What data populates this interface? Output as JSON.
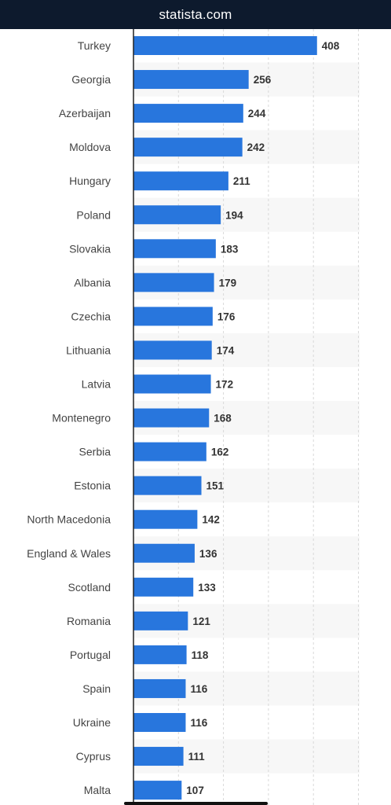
{
  "header": {
    "site": "statista.com"
  },
  "colors": {
    "bar": "#2876dd",
    "band": "#f7f7f7",
    "grid": "#d9d9d9",
    "axis": "#222222",
    "header_bg": "#0d1a2d"
  },
  "chart_data": {
    "type": "bar",
    "orientation": "horizontal",
    "categories": [
      "Turkey",
      "Georgia",
      "Azerbaijan",
      "Moldova",
      "Hungary",
      "Poland",
      "Slovakia",
      "Albania",
      "Czechia",
      "Lithuania",
      "Latvia",
      "Montenegro",
      "Serbia",
      "Estonia",
      "North Macedonia",
      "England & Wales",
      "Scotland",
      "Romania",
      "Portugal",
      "Spain",
      "Ukraine",
      "Cyprus",
      "Malta"
    ],
    "values": [
      408,
      256,
      244,
      242,
      211,
      194,
      183,
      179,
      176,
      174,
      172,
      168,
      162,
      151,
      142,
      136,
      133,
      121,
      118,
      116,
      116,
      111,
      107
    ],
    "data_labels": [
      "408",
      "256",
      "244",
      "242",
      "211",
      "194",
      "183",
      "179",
      "176",
      "174",
      "172",
      "168",
      "162",
      "151",
      "142",
      "136",
      "133",
      "121",
      "118",
      "116",
      "116",
      "111",
      "107"
    ],
    "xlim": [
      0,
      500
    ],
    "gridlines": [
      0,
      100,
      200,
      300,
      400,
      500
    ],
    "grid": true,
    "title": "",
    "xlabel": "",
    "ylabel": ""
  }
}
